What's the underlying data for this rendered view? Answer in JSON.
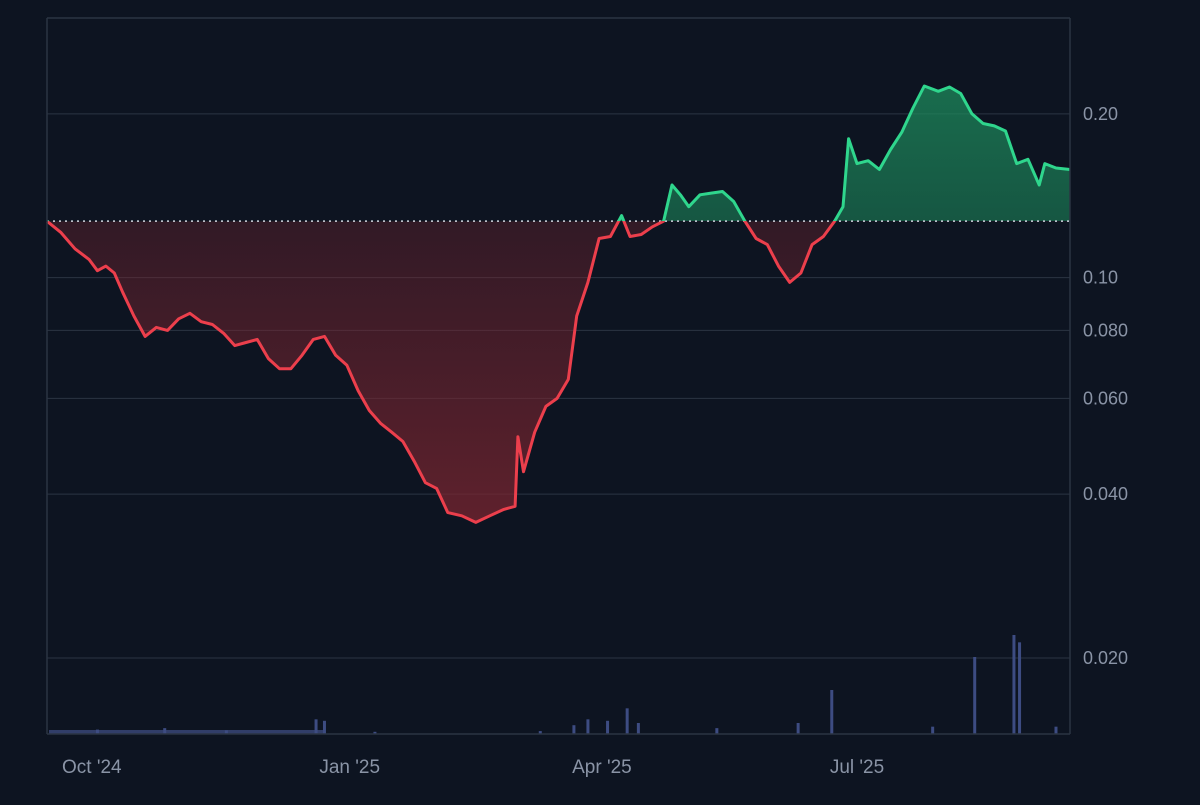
{
  "chart_data": {
    "type": "area",
    "y_scale": "log",
    "baseline": 0.127,
    "ylim": [
      0.0145,
      0.3
    ],
    "xlim": [
      "2024-09-15",
      "2025-09-15"
    ],
    "y_ticks": [
      {
        "value": 0.2,
        "label": "0.20"
      },
      {
        "value": 0.1,
        "label": "0.10"
      },
      {
        "value": 0.08,
        "label": "0.080"
      },
      {
        "value": 0.06,
        "label": "0.060"
      },
      {
        "value": 0.04,
        "label": "0.040"
      },
      {
        "value": 0.02,
        "label": "0.020"
      }
    ],
    "x_ticks": [
      {
        "date": "2024-10-01",
        "label": "Oct '24"
      },
      {
        "date": "2025-01-01",
        "label": "Jan '25"
      },
      {
        "date": "2025-04-01",
        "label": "Apr '25"
      },
      {
        "date": "2025-07-01",
        "label": "Jul '25"
      }
    ],
    "series": [
      {
        "points": [
          [
            "2024-09-15",
            0.127
          ],
          [
            "2024-09-20",
            0.121
          ],
          [
            "2024-09-25",
            0.113
          ],
          [
            "2024-09-30",
            0.108
          ],
          [
            "2024-10-03",
            0.103
          ],
          [
            "2024-10-06",
            0.105
          ],
          [
            "2024-10-09",
            0.102
          ],
          [
            "2024-10-12",
            0.094
          ],
          [
            "2024-10-16",
            0.085
          ],
          [
            "2024-10-20",
            0.078
          ],
          [
            "2024-10-24",
            0.081
          ],
          [
            "2024-10-28",
            0.08
          ],
          [
            "2024-11-01",
            0.084
          ],
          [
            "2024-11-05",
            0.086
          ],
          [
            "2024-11-09",
            0.083
          ],
          [
            "2024-11-13",
            0.082
          ],
          [
            "2024-11-17",
            0.079
          ],
          [
            "2024-11-21",
            0.075
          ],
          [
            "2024-11-25",
            0.076
          ],
          [
            "2024-11-29",
            0.077
          ],
          [
            "2024-12-03",
            0.071
          ],
          [
            "2024-12-07",
            0.068
          ],
          [
            "2024-12-11",
            0.068
          ],
          [
            "2024-12-15",
            0.072
          ],
          [
            "2024-12-19",
            0.077
          ],
          [
            "2024-12-23",
            0.078
          ],
          [
            "2024-12-27",
            0.072
          ],
          [
            "2024-12-31",
            0.069
          ],
          [
            "2025-01-04",
            0.062
          ],
          [
            "2025-01-08",
            0.057
          ],
          [
            "2025-01-12",
            0.054
          ],
          [
            "2025-01-16",
            0.052
          ],
          [
            "2025-01-20",
            0.05
          ],
          [
            "2025-01-24",
            0.046
          ],
          [
            "2025-01-28",
            0.042
          ],
          [
            "2025-02-01",
            0.041
          ],
          [
            "2025-02-05",
            0.037
          ],
          [
            "2025-02-10",
            0.0365
          ],
          [
            "2025-02-15",
            0.0355
          ],
          [
            "2025-02-20",
            0.0365
          ],
          [
            "2025-02-25",
            0.0375
          ],
          [
            "2025-03-01",
            0.038
          ],
          [
            "2025-03-02",
            0.051
          ],
          [
            "2025-03-04",
            0.044
          ],
          [
            "2025-03-08",
            0.052
          ],
          [
            "2025-03-12",
            0.058
          ],
          [
            "2025-03-16",
            0.06
          ],
          [
            "2025-03-20",
            0.065
          ],
          [
            "2025-03-23",
            0.085
          ],
          [
            "2025-03-27",
            0.098
          ],
          [
            "2025-03-31",
            0.118
          ],
          [
            "2025-04-04",
            0.119
          ],
          [
            "2025-04-08",
            0.13
          ],
          [
            "2025-04-11",
            0.119
          ],
          [
            "2025-04-15",
            0.12
          ],
          [
            "2025-04-19",
            0.124
          ],
          [
            "2025-04-23",
            0.127
          ],
          [
            "2025-04-26",
            0.148
          ],
          [
            "2025-04-29",
            0.142
          ],
          [
            "2025-05-02",
            0.135
          ],
          [
            "2025-05-06",
            0.142
          ],
          [
            "2025-05-10",
            0.143
          ],
          [
            "2025-05-14",
            0.144
          ],
          [
            "2025-05-18",
            0.138
          ],
          [
            "2025-05-22",
            0.127
          ],
          [
            "2025-05-26",
            0.118
          ],
          [
            "2025-05-30",
            0.115
          ],
          [
            "2025-06-03",
            0.105
          ],
          [
            "2025-06-07",
            0.098
          ],
          [
            "2025-06-11",
            0.102
          ],
          [
            "2025-06-15",
            0.115
          ],
          [
            "2025-06-19",
            0.119
          ],
          [
            "2025-06-23",
            0.127
          ],
          [
            "2025-06-26",
            0.135
          ],
          [
            "2025-06-28",
            0.18
          ],
          [
            "2025-07-01",
            0.162
          ],
          [
            "2025-07-05",
            0.164
          ],
          [
            "2025-07-09",
            0.158
          ],
          [
            "2025-07-13",
            0.172
          ],
          [
            "2025-07-17",
            0.185
          ],
          [
            "2025-07-21",
            0.205
          ],
          [
            "2025-07-25",
            0.225
          ],
          [
            "2025-07-30",
            0.22
          ],
          [
            "2025-08-03",
            0.224
          ],
          [
            "2025-08-07",
            0.218
          ],
          [
            "2025-08-11",
            0.2
          ],
          [
            "2025-08-15",
            0.192
          ],
          [
            "2025-08-19",
            0.19
          ],
          [
            "2025-08-23",
            0.186
          ],
          [
            "2025-08-27",
            0.162
          ],
          [
            "2025-08-31",
            0.165
          ],
          [
            "2025-09-04",
            0.148
          ],
          [
            "2025-09-06",
            0.162
          ],
          [
            "2025-09-10",
            0.159
          ],
          [
            "2025-09-15",
            0.158
          ]
        ]
      }
    ],
    "volume": [
      [
        "2024-10-03",
        0.006
      ],
      [
        "2024-10-27",
        0.008
      ],
      [
        "2024-11-18",
        0.005
      ],
      [
        "2024-12-20",
        0.02
      ],
      [
        "2024-12-23",
        0.018
      ],
      [
        "2025-01-10",
        0.003
      ],
      [
        "2025-03-10",
        0.004
      ],
      [
        "2025-03-22",
        0.012
      ],
      [
        "2025-03-27",
        0.02
      ],
      [
        "2025-04-03",
        0.018
      ],
      [
        "2025-04-10",
        0.035
      ],
      [
        "2025-04-14",
        0.015
      ],
      [
        "2025-05-12",
        0.008
      ],
      [
        "2025-06-10",
        0.015
      ],
      [
        "2025-06-22",
        0.06
      ],
      [
        "2025-07-28",
        0.01
      ],
      [
        "2025-08-12",
        0.105
      ],
      [
        "2025-08-26",
        0.135
      ],
      [
        "2025-08-28",
        0.125
      ],
      [
        "2025-09-10",
        0.01
      ]
    ],
    "colors": {
      "up_line": "#2fd68d",
      "down_line": "#ec3f4c",
      "up_fill": "#1d8a5c",
      "down_fill": "#7a2530",
      "grid": "#2b3443",
      "axis_text": "#8a94a6",
      "baseline": "#cfd6e0",
      "volume": "#3d4c82",
      "background": "#0d1421"
    }
  }
}
